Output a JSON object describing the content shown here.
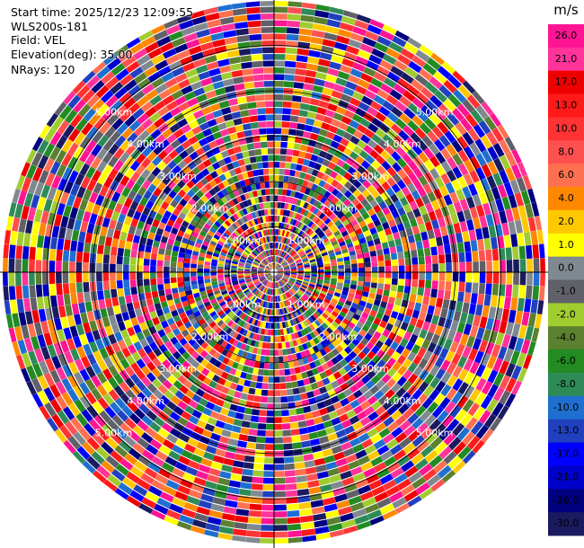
{
  "header": {
    "start_time": "Start time: 2025/12/23 12:09:55",
    "instrument": "WLS200s-181",
    "field": "Field: VEL",
    "elevation": "Elevation(deg): 35.00",
    "nrays": "NRays: 120"
  },
  "chart_data": {
    "type": "heatmap",
    "projection": "polar-ppi",
    "field": "VEL",
    "units": "m/s",
    "nrays": 120,
    "elevation_deg": 35.0,
    "max_range_km": 6.0,
    "range_ring_labels": [
      "1.00km",
      "2.00km",
      "3.00km",
      "4.00km",
      "5.00km"
    ],
    "colorbar": {
      "label": "m/s",
      "ticks": [
        "26.0",
        "21.0",
        "17.0",
        "13.0",
        "10.0",
        "8.0",
        "6.0",
        "4.0",
        "2.0",
        "1.0",
        "0.0",
        "-1.0",
        "-2.0",
        "-4.0",
        "-6.0",
        "-8.0",
        "-10.0",
        "-13.0",
        "-17.0",
        "-21.0",
        "-26.0",
        "-30.0"
      ],
      "colors": [
        "#ff1493",
        "#ff3399",
        "#ee0000",
        "#ff1a1a",
        "#ff3333",
        "#ff5050",
        "#ff7050",
        "#ff8800",
        "#ffc800",
        "#ffff00",
        "#808890",
        "#606068",
        "#a0cc30",
        "#5a8030",
        "#228b22",
        "#2e8b57",
        "#1e6fd0",
        "#2040c0",
        "#0000ff",
        "#0000cc",
        "#000080",
        "#1a1a60"
      ]
    }
  }
}
